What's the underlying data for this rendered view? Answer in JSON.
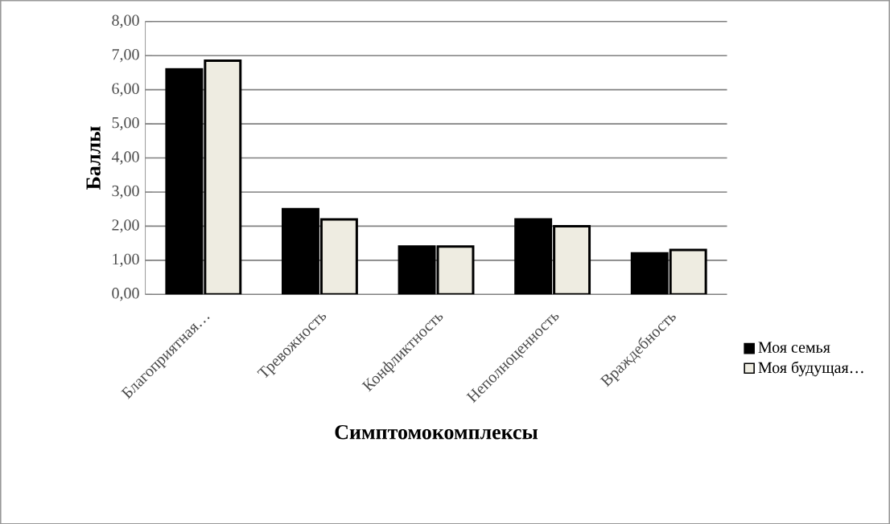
{
  "chart_data": {
    "type": "bar",
    "xlabel": "Симптомокомплексы",
    "ylabel": "Баллы",
    "categories": [
      "Благоприятная…",
      "Тревожность",
      "Конфликтность",
      "Неполноценность",
      "Враждебность"
    ],
    "series": [
      {
        "name": "Моя семья",
        "color": "#000000",
        "values": [
          6.6,
          2.5,
          1.4,
          2.2,
          1.2
        ]
      },
      {
        "name": "Моя будущая…",
        "color": "#eeece1",
        "values": [
          6.85,
          2.2,
          1.4,
          2.0,
          1.3
        ]
      }
    ],
    "ylim": [
      0,
      8
    ],
    "yticks": [
      {
        "value": 0,
        "label": "0,00"
      },
      {
        "value": 1,
        "label": "1,00"
      },
      {
        "value": 2,
        "label": "2,00"
      },
      {
        "value": 3,
        "label": "3,00"
      },
      {
        "value": 4,
        "label": "4,00"
      },
      {
        "value": 5,
        "label": "5,00"
      },
      {
        "value": 6,
        "label": "6,00"
      },
      {
        "value": 7,
        "label": "7,00"
      },
      {
        "value": 8,
        "label": "8,00"
      }
    ],
    "grid": "y",
    "legend": "right"
  }
}
